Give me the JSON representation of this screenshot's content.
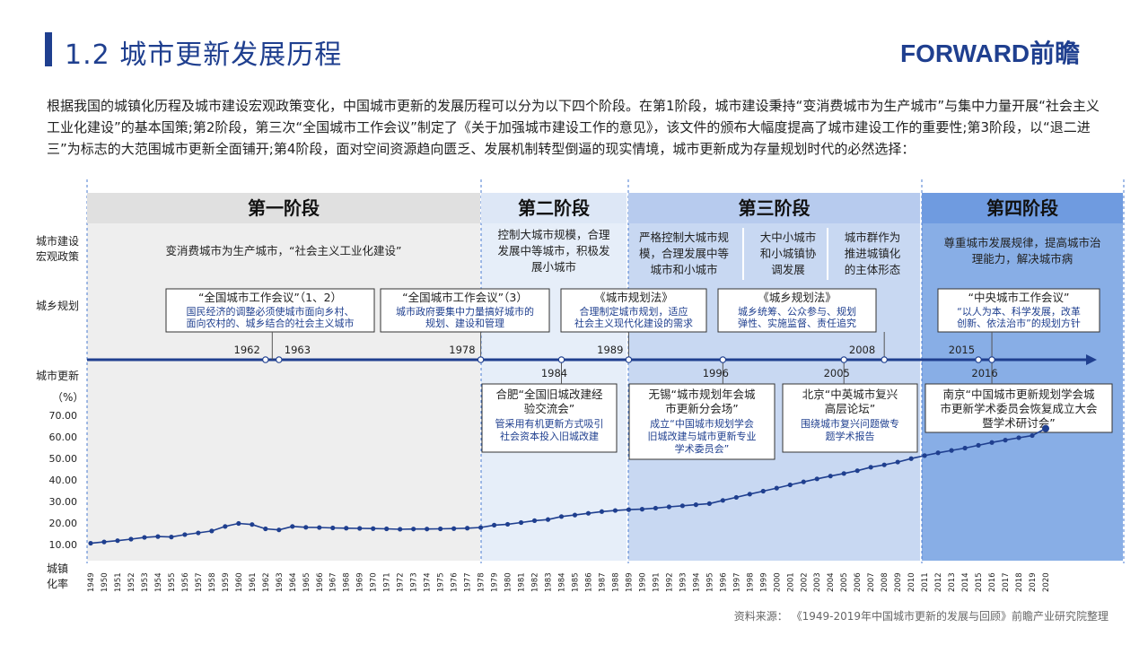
{
  "page": {
    "title": "1.2  城市更新发展历程",
    "logo": "FORWARD前瞻",
    "intro": "根据我国的城镇化历程及城市建设宏观政策变化，中国城市更新的发展历程可以分为以下四个阶段。在第1阶段，城市建设秉持“变消费城市为生产城市”与集中力量开展“社会主义工业化建设”的基本国策;第2阶段，第三次“全国城市工作会议”制定了《关于加强城市建设工作的意见》，该文件的颁布大幅度提高了城市建设工作的重要性;第3阶段，以“退二进三”为标志的大范围城市更新全面铺开;第4阶段，面对空间资源趋向匮乏、发展机制转型倒逼的现实情境，城市更新成为存量规划时代的必然选择：",
    "source": "资料来源：  《1949-2019年中国城市更新的发展与回顾》前瞻产业研究院整理"
  },
  "row_labels": {
    "policy": [
      "城市建设",
      "宏观政策"
    ],
    "planning": "城乡规划",
    "renewal": "城市更新",
    "percent": "（%）",
    "urban": [
      "城镇",
      "化率"
    ]
  },
  "stages": [
    {
      "title": "第一阶段",
      "policy": [
        "变消费城市为生产城市，“社会主义工业化建设”"
      ]
    },
    {
      "title": "第二阶段",
      "policy": [
        "控制大城市规模，合理",
        "发展中等城市，积极发",
        "展小城市"
      ]
    },
    {
      "title": "第三阶段",
      "policy_cols": [
        [
          "严格控制大城市规",
          "模，合理发展中等",
          "城市和小城市"
        ],
        [
          "大中小城市",
          "和小城镇协",
          "调发展"
        ],
        [
          "城市群作为",
          "推进城镇化",
          "的主体形态"
        ]
      ]
    },
    {
      "title": "第四阶段",
      "policy": [
        "尊重城市发展规律，提高城市治",
        "理能力，解决城市病"
      ]
    }
  ],
  "planning_events": [
    {
      "year_label": "1962",
      "year_label2": "1963",
      "title": "“全国城市工作会议”（1、2）",
      "body": [
        "国民经济的调整必须使城市面向乡村、",
        "面向农村的、城乡结合的社会主义城市"
      ]
    },
    {
      "year_label": "1978",
      "title": "“全国城市工作会议”（3）",
      "body": [
        "城市政府要集中力量搞好城市的",
        "规划、建设和管理"
      ]
    },
    {
      "year_label": "1989",
      "title": "《城市规划法》",
      "body": [
        "合理制定城市规划，适应",
        "社会主义现代化建设的需求"
      ]
    },
    {
      "year_label": "2008",
      "title": "《城乡规划法》",
      "body": [
        "城乡统筹、公众参与、规划",
        "弹性、实施监督、责任追究"
      ]
    },
    {
      "year_label": "2015",
      "title": "“中央城市工作会议”",
      "body": [
        "“以人为本、科学发展，改革",
        "创新、依法治市”的规划方针"
      ]
    }
  ],
  "renewal_events": [
    {
      "year_label": "1984",
      "title": [
        "合肥“全国旧城改建经",
        "验交流会”"
      ],
      "body": [
        "管采用有机更新方式吸引",
        "社会资本投入旧城改建"
      ]
    },
    {
      "year_label": "1996",
      "title": [
        "无锡“城市规划年会城",
        "市更新分会场”"
      ],
      "body": [
        "成立“中国城市规划学会",
        "旧城改建与城市更新专业",
        "学术委员会”"
      ]
    },
    {
      "year_label": "2005",
      "title": [
        "北京“中英城市复兴",
        "高层论坛”"
      ],
      "body": [
        "围绕城市复兴问题做专",
        "题学术报告"
      ]
    },
    {
      "year_label": "2016",
      "title": [
        "南京“中国城市更新规划学会城",
        "市更新学术委员会恢复成立大会",
        "暨学术研讨会”"
      ],
      "body": []
    }
  ],
  "colors": {
    "accent": "#1f3f8f",
    "stage1_bg": "#eeeeee",
    "stage2_bg": "#e6eef9",
    "stage3_bg": "#c8d8f2",
    "stage4_bg": "#88aee6",
    "line": "#1f3f8f"
  },
  "chart_data": {
    "type": "line",
    "title": "",
    "xlabel": "城镇化率",
    "ylabel": "（%）",
    "ylim": [
      10,
      70
    ],
    "yticks": [
      "10.00",
      "20.00",
      "30.00",
      "40.00",
      "50.00",
      "60.00",
      "70.00"
    ],
    "x": [
      1949,
      1950,
      1951,
      1952,
      1953,
      1954,
      1955,
      1956,
      1957,
      1958,
      1959,
      1960,
      1961,
      1962,
      1963,
      1964,
      1965,
      1966,
      1967,
      1968,
      1969,
      1970,
      1971,
      1972,
      1973,
      1974,
      1975,
      1976,
      1977,
      1978,
      1979,
      1980,
      1981,
      1982,
      1983,
      1984,
      1985,
      1986,
      1987,
      1988,
      1989,
      1990,
      1991,
      1992,
      1993,
      1994,
      1995,
      1996,
      1997,
      1998,
      1999,
      2000,
      2001,
      2002,
      2003,
      2004,
      2005,
      2006,
      2007,
      2008,
      2009,
      2010,
      2011,
      2012,
      2013,
      2014,
      2015,
      2016,
      2017,
      2018,
      2019,
      2020
    ],
    "series": [
      {
        "values": [
          10.6,
          11.2,
          11.8,
          12.5,
          13.3,
          13.7,
          13.5,
          14.6,
          15.4,
          16.3,
          18.4,
          19.8,
          19.3,
          17.3,
          16.8,
          18.4,
          18.0,
          17.9,
          17.7,
          17.6,
          17.5,
          17.4,
          17.3,
          17.1,
          17.2,
          17.2,
          17.3,
          17.4,
          17.6,
          17.9,
          19.0,
          19.4,
          20.2,
          21.1,
          21.6,
          23.0,
          23.7,
          24.5,
          25.3,
          25.8,
          26.2,
          26.4,
          26.9,
          27.5,
          28.0,
          28.5,
          29.0,
          30.5,
          31.9,
          33.4,
          34.8,
          36.2,
          37.7,
          39.1,
          40.5,
          41.8,
          43.0,
          44.3,
          45.9,
          47.0,
          48.3,
          49.9,
          51.3,
          52.6,
          53.7,
          54.8,
          56.1,
          57.4,
          58.5,
          59.6,
          60.6,
          63.9
        ]
      }
    ]
  }
}
